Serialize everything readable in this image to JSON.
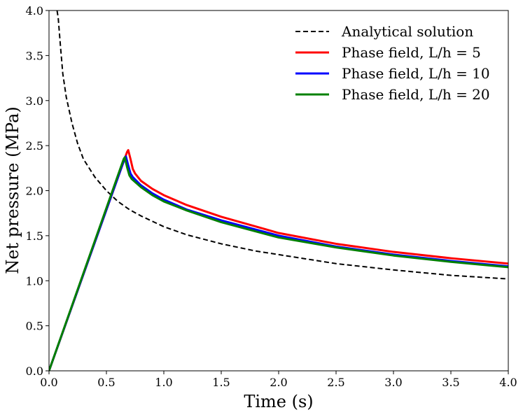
{
  "chart_data": {
    "type": "line",
    "title": "",
    "xlabel": "Time (s)",
    "ylabel": "Net pressure (MPa)",
    "xlim": [
      0,
      4.0
    ],
    "ylim": [
      0,
      4.0
    ],
    "xticks": [
      "0.0",
      "0.5",
      "1.0",
      "1.5",
      "2.0",
      "2.5",
      "3.0",
      "3.5",
      "4.0"
    ],
    "yticks": [
      "0.0",
      "0.5",
      "1.0",
      "1.5",
      "2.0",
      "2.5",
      "3.0",
      "3.5",
      "4.0"
    ],
    "legend_position": "top-right",
    "series": [
      {
        "name": "Analytical solution",
        "color": "#000000",
        "style": "dashed",
        "x": [
          0.07,
          0.08,
          0.1,
          0.12,
          0.15,
          0.2,
          0.25,
          0.3,
          0.4,
          0.5,
          0.6,
          0.7,
          0.8,
          1.0,
          1.2,
          1.5,
          1.8,
          2.0,
          2.5,
          3.0,
          3.5,
          4.0
        ],
        "y": [
          4.0,
          3.92,
          3.6,
          3.3,
          3.04,
          2.75,
          2.52,
          2.35,
          2.15,
          2.0,
          1.88,
          1.79,
          1.72,
          1.6,
          1.51,
          1.41,
          1.33,
          1.29,
          1.19,
          1.12,
          1.06,
          1.02
        ]
      },
      {
        "name": "Phase field, L/h = 5",
        "color": "#ff0000",
        "style": "solid",
        "x": [
          0.0,
          0.68,
          0.69,
          0.71,
          0.73,
          0.75,
          0.8,
          0.9,
          1.0,
          1.2,
          1.5,
          2.0,
          2.5,
          3.0,
          3.5,
          4.0
        ],
        "y": [
          0.0,
          2.43,
          2.45,
          2.35,
          2.24,
          2.19,
          2.11,
          2.02,
          1.95,
          1.84,
          1.71,
          1.53,
          1.41,
          1.32,
          1.25,
          1.19
        ]
      },
      {
        "name": "Phase field, L/h = 10",
        "color": "#0000ff",
        "style": "solid",
        "x": [
          0.0,
          0.66,
          0.67,
          0.69,
          0.71,
          0.73,
          0.8,
          0.9,
          1.0,
          1.2,
          1.5,
          2.0,
          2.5,
          3.0,
          3.5,
          4.0
        ],
        "y": [
          0.0,
          2.36,
          2.38,
          2.28,
          2.19,
          2.15,
          2.06,
          1.97,
          1.9,
          1.79,
          1.67,
          1.5,
          1.38,
          1.29,
          1.22,
          1.16
        ]
      },
      {
        "name": "Phase field, L/h = 20",
        "color": "#008000",
        "style": "solid",
        "x": [
          0.0,
          0.65,
          0.66,
          0.68,
          0.7,
          0.72,
          0.8,
          0.9,
          1.0,
          1.2,
          1.5,
          2.0,
          2.5,
          3.0,
          3.5,
          4.0
        ],
        "y": [
          0.0,
          2.35,
          2.37,
          2.26,
          2.17,
          2.13,
          2.04,
          1.95,
          1.88,
          1.78,
          1.65,
          1.48,
          1.37,
          1.28,
          1.21,
          1.15
        ]
      }
    ]
  }
}
